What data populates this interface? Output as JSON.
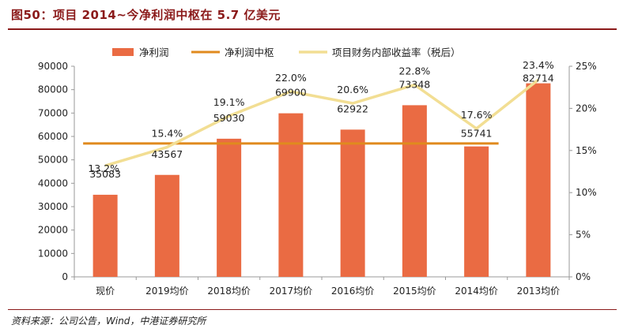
{
  "figure": {
    "title": "图50：项目 2014~今净利润中枢在 5.7 亿美元",
    "source": "资料来源：公司公告，Wind，中港证券研究所"
  },
  "chart_data": {
    "type": "bar",
    "categories": [
      "现价",
      "2019均价",
      "2018均价",
      "2017均价",
      "2016均价",
      "2015均价",
      "2014均价",
      "2013均价"
    ],
    "series": [
      {
        "name": "净利润",
        "type": "bar",
        "axis": "left",
        "color": "#ea6b43",
        "values": [
          35083,
          43567,
          59030,
          69900,
          62922,
          73348,
          55741,
          82714
        ],
        "labels": [
          "35083",
          "43567",
          "59030",
          "69900",
          "62922",
          "73348",
          "55741",
          "82714"
        ]
      },
      {
        "name": "净利润中枢",
        "type": "line",
        "axis": "left",
        "color": "#e08a1e",
        "values": [
          57000,
          57000,
          57000,
          57000,
          57000,
          57000,
          57000,
          null
        ]
      },
      {
        "name": "项目财务内部收益率（税后）",
        "type": "line",
        "axis": "right",
        "color": "#f2de93",
        "values": [
          13.2,
          15.4,
          19.1,
          22.0,
          20.6,
          22.8,
          17.6,
          23.4
        ],
        "labels": [
          "13.2%",
          "15.4%",
          "19.1%",
          "22.0%",
          "20.6%",
          "22.8%",
          "17.6%",
          "23.4%"
        ]
      }
    ],
    "y_left": {
      "ylim": [
        0,
        90000
      ],
      "ticks": [
        "0",
        "10000",
        "20000",
        "30000",
        "40000",
        "50000",
        "60000",
        "70000",
        "80000",
        "90000"
      ]
    },
    "y_right": {
      "ylim": [
        0,
        25
      ],
      "ticks": [
        "0%",
        "5%",
        "10%",
        "15%",
        "20%",
        "25%"
      ]
    },
    "legend": "top",
    "grid": false
  }
}
